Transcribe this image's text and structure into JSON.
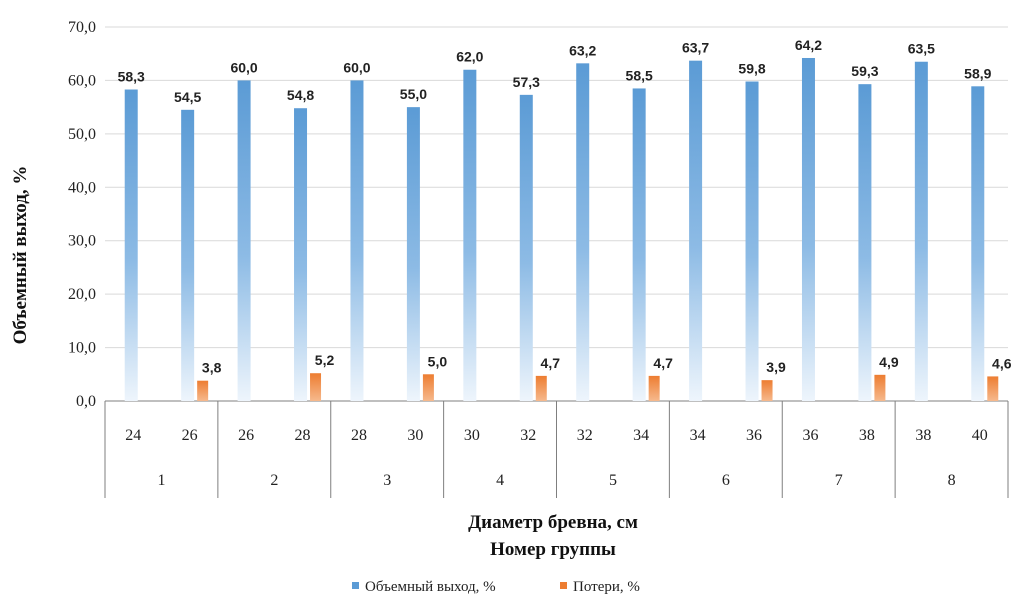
{
  "chart_data": {
    "type": "bar",
    "title": "",
    "ylabel": "Объемный выход, %",
    "xlabel": "Диаметр бревна, см",
    "xlabel2": "Номер группы",
    "ylim": [
      0,
      70
    ],
    "ytick_step": 10,
    "ytick_labels": [
      "0,0",
      "10,0",
      "20,0",
      "30,0",
      "40,0",
      "50,0",
      "60,0",
      "70,0"
    ],
    "grid": true,
    "legend_position": "bottom",
    "categories": [
      "24",
      "26",
      "26",
      "28",
      "28",
      "30",
      "30",
      "32",
      "32",
      "34",
      "34",
      "36",
      "36",
      "38",
      "38",
      "40"
    ],
    "groups": [
      {
        "label": "1",
        "size": 2
      },
      {
        "label": "2",
        "size": 2
      },
      {
        "label": "3",
        "size": 2
      },
      {
        "label": "4",
        "size": 2
      },
      {
        "label": "5",
        "size": 2
      },
      {
        "label": "6",
        "size": 2
      },
      {
        "label": "7",
        "size": 2
      },
      {
        "label": "8",
        "size": 2
      }
    ],
    "series": [
      {
        "name": "Объемный выход, %",
        "color": "#5b9bd5",
        "values": [
          58.3,
          54.5,
          60.0,
          54.8,
          60.0,
          55.0,
          62.0,
          57.3,
          63.2,
          58.5,
          63.7,
          59.8,
          64.2,
          59.3,
          63.5,
          58.9
        ],
        "labels": [
          "58,3",
          "54,5",
          "60,0",
          "54,8",
          "60,0",
          "55,0",
          "62,0",
          "57,3",
          "63,2",
          "58,5",
          "63,7",
          "59,8",
          "64,2",
          "59,3",
          "63,5",
          "58,9"
        ]
      },
      {
        "name": "Потери, %",
        "color": "#ed7d31",
        "values": [
          null,
          3.8,
          null,
          5.2,
          null,
          5.0,
          null,
          4.7,
          null,
          4.7,
          null,
          3.9,
          null,
          4.9,
          null,
          4.6
        ],
        "labels": [
          null,
          "3,8",
          null,
          "5,2",
          null,
          "5,0",
          null,
          "4,7",
          null,
          "4,7",
          null,
          "3,9",
          null,
          "4,9",
          null,
          "4,6"
        ]
      }
    ]
  }
}
